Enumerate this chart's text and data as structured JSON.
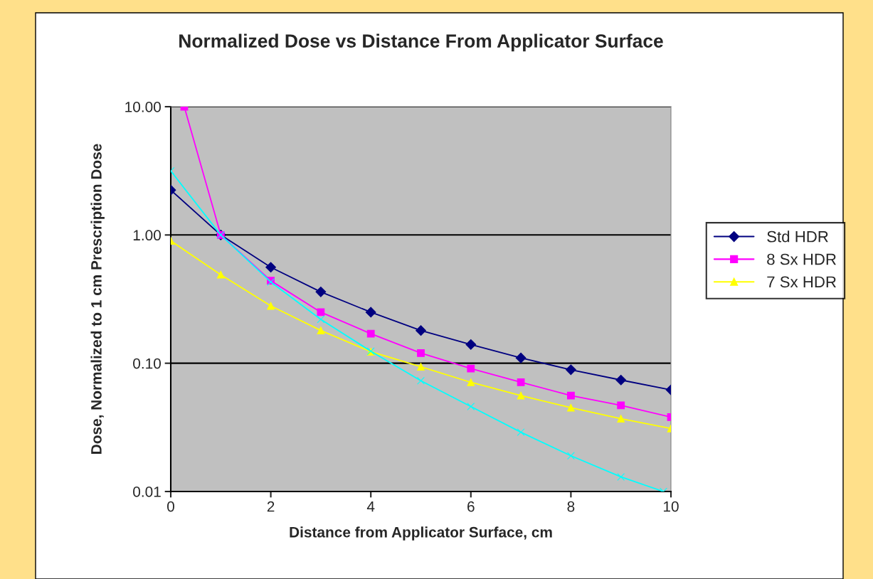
{
  "chart_data": {
    "type": "line",
    "title": "Normalized Dose vs Distance From Applicator Surface",
    "xlabel": "Distance from Applicator Surface, cm",
    "ylabel": "Dose, Normalized to 1 cm Prescription Dose",
    "x": [
      0,
      1,
      2,
      3,
      4,
      5,
      6,
      7,
      8,
      9,
      10
    ],
    "series": [
      {
        "name": "Std HDR",
        "color": "#000080",
        "marker": "diamond",
        "values": [
          2.24,
          1.0,
          0.56,
          0.36,
          0.25,
          0.18,
          0.14,
          0.11,
          0.089,
          0.074,
          0.062
        ]
      },
      {
        "name": "8 Sx HDR",
        "color": "#ff00ff",
        "marker": "square",
        "x": [
          0.27,
          1,
          2,
          3,
          4,
          5,
          6,
          7,
          8,
          9,
          10
        ],
        "values": [
          10,
          1.0,
          0.44,
          0.25,
          0.17,
          0.12,
          0.091,
          0.071,
          0.056,
          0.047,
          0.038
        ]
      },
      {
        "name": "7 Sx HDR",
        "color": "#ffff00",
        "marker": "triangle",
        "values": [
          0.9,
          0.49,
          0.28,
          0.18,
          0.123,
          0.094,
          0.071,
          0.056,
          0.045,
          0.037,
          0.031
        ]
      },
      {
        "color": "#00ffff",
        "marker": "cross",
        "x": [
          0,
          1,
          2,
          3,
          4,
          5,
          6,
          7,
          8,
          9,
          9.85
        ],
        "values": [
          3.16,
          1.0,
          0.43,
          0.22,
          0.124,
          0.073,
          0.046,
          0.029,
          0.019,
          0.013,
          0.01
        ]
      }
    ],
    "log": "y",
    "xlim": [
      0,
      10
    ],
    "xticks": [
      0,
      2,
      4,
      6,
      8,
      10
    ],
    "ylim": [
      0.01,
      10
    ],
    "yticks": [
      {
        "value": 0.01,
        "label": "0.01"
      },
      {
        "value": 0.1,
        "label": "0.10"
      },
      {
        "value": 1,
        "label": "1.00"
      },
      {
        "value": 10,
        "label": "10.00"
      }
    ],
    "grid": "y",
    "legend": "right"
  }
}
